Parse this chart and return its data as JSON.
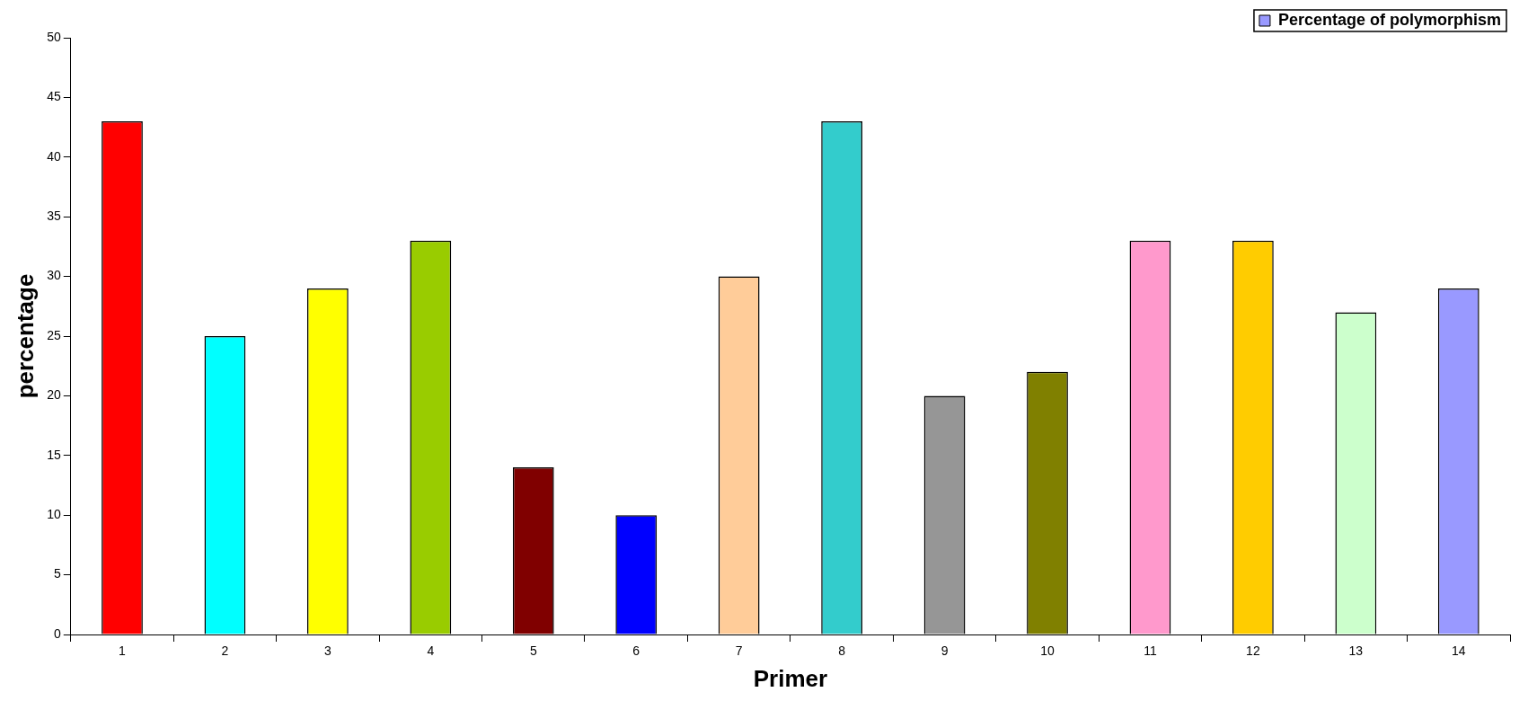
{
  "chart_data": {
    "type": "bar",
    "xlabel": "Primer",
    "ylabel": "percentage",
    "categories": [
      "1",
      "2",
      "3",
      "4",
      "5",
      "6",
      "7",
      "8",
      "9",
      "10",
      "11",
      "12",
      "13",
      "14"
    ],
    "series": [
      {
        "name": "Percentage of polymorphism",
        "color": "#9999ff",
        "colors": [
          "#ff0000",
          "#00ffff",
          "#ffff00",
          "#99cc00",
          "#800000",
          "#0000ff",
          "#ffcc99",
          "#33cccc",
          "#969696",
          "#808000",
          "#ff99cc",
          "#ffcc00",
          "#ccffcc",
          "#9999ff"
        ],
        "values": [
          43,
          25,
          29,
          33,
          14,
          10,
          30,
          43,
          20,
          22,
          33,
          33,
          27,
          29
        ]
      }
    ],
    "ylim": [
      0,
      50
    ],
    "yticks": [
      0,
      5,
      10,
      15,
      20,
      25,
      30,
      35,
      40,
      45,
      50
    ],
    "grid": false,
    "legend": "top right"
  }
}
